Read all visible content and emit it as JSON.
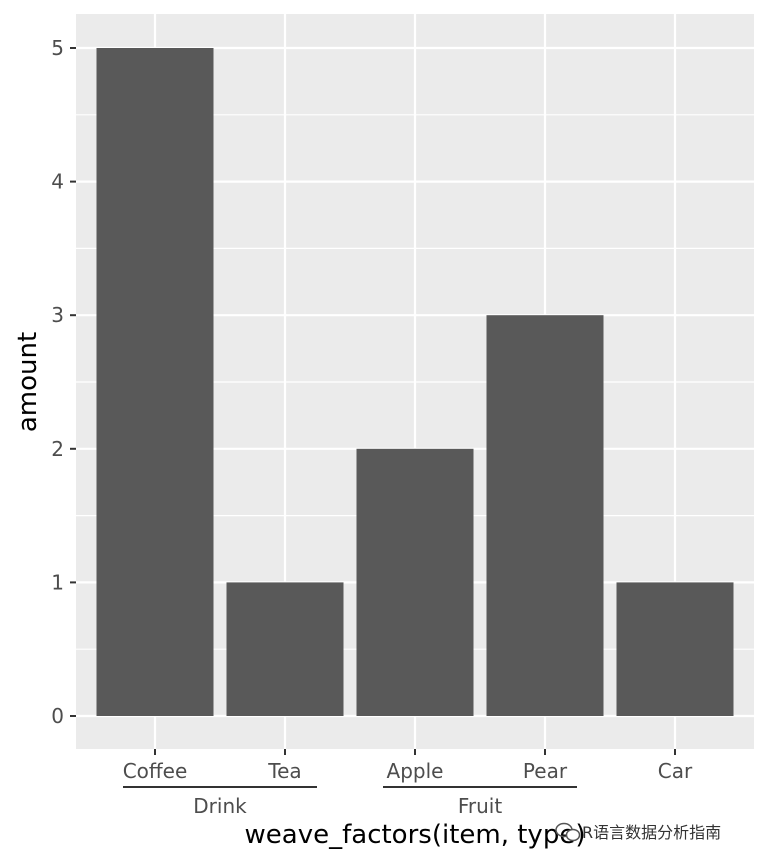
{
  "chart_data": {
    "type": "bar",
    "categories": [
      "Coffee",
      "Tea",
      "Apple",
      "Pear",
      "Car"
    ],
    "values": [
      5,
      1,
      2,
      3,
      1
    ],
    "groups": [
      {
        "label": "Drink",
        "categories": [
          "Coffee",
          "Tea"
        ]
      },
      {
        "label": "Fruit",
        "categories": [
          "Apple",
          "Pear"
        ]
      }
    ],
    "xlabel": "weave_factors(item, type)",
    "ylabel": "amount",
    "ylim": [
      0,
      5
    ],
    "yticks": [
      "0",
      "1",
      "2",
      "3",
      "4",
      "5"
    ],
    "grid": true,
    "colors": {
      "panel_bg": "#ebebeb",
      "grid": "#ffffff",
      "bar": "#595959"
    }
  },
  "watermark": {
    "text": "R语言数据分析指南",
    "icon": "wechat-logo-icon"
  }
}
